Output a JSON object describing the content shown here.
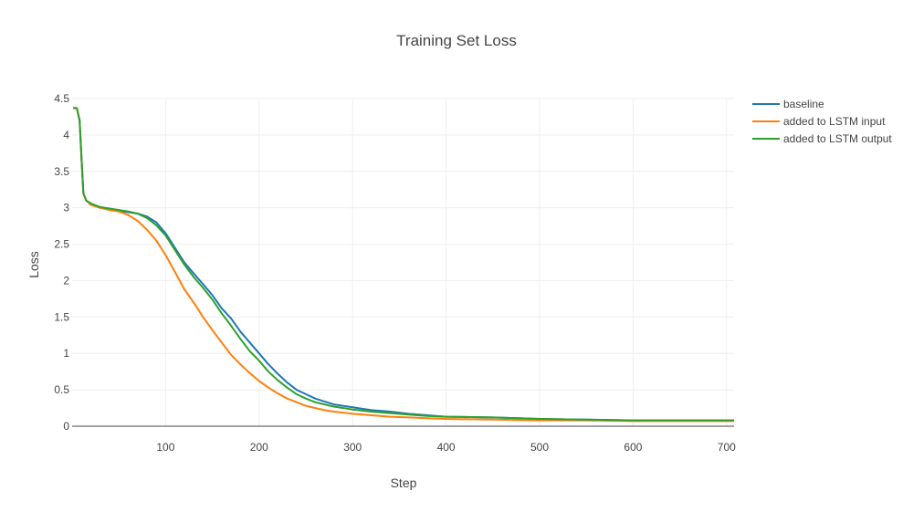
{
  "chart_data": {
    "type": "line",
    "title": "Training Set Loss",
    "xlabel": "Step",
    "ylabel": "Loss",
    "xlim": [
      0,
      708
    ],
    "ylim": [
      0,
      4.5
    ],
    "xticks": [
      100,
      200,
      300,
      400,
      500,
      600,
      700
    ],
    "xtick_labels": [
      "100",
      "200",
      "300",
      "400",
      "500",
      "600",
      "700"
    ],
    "yticks": [
      0,
      0.5,
      1,
      1.5,
      2,
      2.5,
      3,
      3.5,
      4,
      4.5
    ],
    "ytick_labels": [
      "0",
      "0.5",
      "1",
      "1.5",
      "2",
      "2.5",
      "3",
      "3.5",
      "4",
      "4.5"
    ],
    "grid": true,
    "legend_position": "top-right",
    "series": [
      {
        "name": "baseline",
        "color": "#1f77b4",
        "x": [
          1,
          5,
          8,
          10,
          12,
          15,
          20,
          30,
          40,
          50,
          60,
          70,
          80,
          90,
          100,
          110,
          120,
          130,
          140,
          150,
          160,
          170,
          180,
          190,
          200,
          210,
          220,
          230,
          240,
          250,
          260,
          270,
          280,
          300,
          320,
          340,
          360,
          380,
          400,
          450,
          500,
          550,
          600,
          650,
          700,
          708
        ],
        "y": [
          4.37,
          4.37,
          4.2,
          3.7,
          3.2,
          3.1,
          3.05,
          3.0,
          2.98,
          2.96,
          2.94,
          2.92,
          2.88,
          2.8,
          2.65,
          2.45,
          2.25,
          2.1,
          1.95,
          1.8,
          1.62,
          1.48,
          1.3,
          1.15,
          1.0,
          0.85,
          0.72,
          0.6,
          0.5,
          0.44,
          0.38,
          0.34,
          0.3,
          0.26,
          0.22,
          0.2,
          0.17,
          0.15,
          0.13,
          0.12,
          0.1,
          0.09,
          0.08,
          0.08,
          0.08,
          0.08
        ]
      },
      {
        "name": "added to LSTM input",
        "color": "#ff7f0e",
        "x": [
          1,
          5,
          8,
          10,
          12,
          15,
          20,
          30,
          40,
          50,
          60,
          70,
          80,
          90,
          100,
          110,
          120,
          130,
          140,
          150,
          160,
          170,
          180,
          190,
          200,
          210,
          220,
          230,
          240,
          250,
          260,
          270,
          280,
          300,
          320,
          340,
          360,
          380,
          400,
          450,
          500,
          550,
          600,
          650,
          700,
          708
        ],
        "y": [
          4.37,
          4.37,
          4.2,
          3.7,
          3.2,
          3.1,
          3.04,
          3.0,
          2.97,
          2.95,
          2.9,
          2.82,
          2.7,
          2.55,
          2.35,
          2.12,
          1.88,
          1.7,
          1.5,
          1.32,
          1.15,
          0.98,
          0.85,
          0.73,
          0.62,
          0.53,
          0.45,
          0.38,
          0.33,
          0.28,
          0.25,
          0.22,
          0.2,
          0.17,
          0.15,
          0.13,
          0.12,
          0.11,
          0.1,
          0.09,
          0.08,
          0.08,
          0.07,
          0.07,
          0.07,
          0.07
        ]
      },
      {
        "name": "added to LSTM output",
        "color": "#2ca02c",
        "x": [
          1,
          5,
          8,
          10,
          12,
          15,
          20,
          30,
          40,
          50,
          60,
          70,
          80,
          90,
          100,
          110,
          120,
          130,
          140,
          150,
          160,
          170,
          180,
          190,
          200,
          210,
          220,
          230,
          240,
          250,
          260,
          270,
          280,
          300,
          320,
          340,
          360,
          380,
          400,
          450,
          500,
          550,
          600,
          650,
          700,
          708
        ],
        "y": [
          4.37,
          4.37,
          4.2,
          3.7,
          3.2,
          3.1,
          3.06,
          3.01,
          2.99,
          2.97,
          2.95,
          2.92,
          2.86,
          2.76,
          2.62,
          2.42,
          2.22,
          2.05,
          1.9,
          1.74,
          1.55,
          1.38,
          1.2,
          1.03,
          0.9,
          0.75,
          0.63,
          0.53,
          0.44,
          0.38,
          0.33,
          0.3,
          0.27,
          0.23,
          0.2,
          0.18,
          0.16,
          0.14,
          0.13,
          0.12,
          0.1,
          0.09,
          0.08,
          0.08,
          0.08,
          0.08
        ]
      }
    ]
  }
}
